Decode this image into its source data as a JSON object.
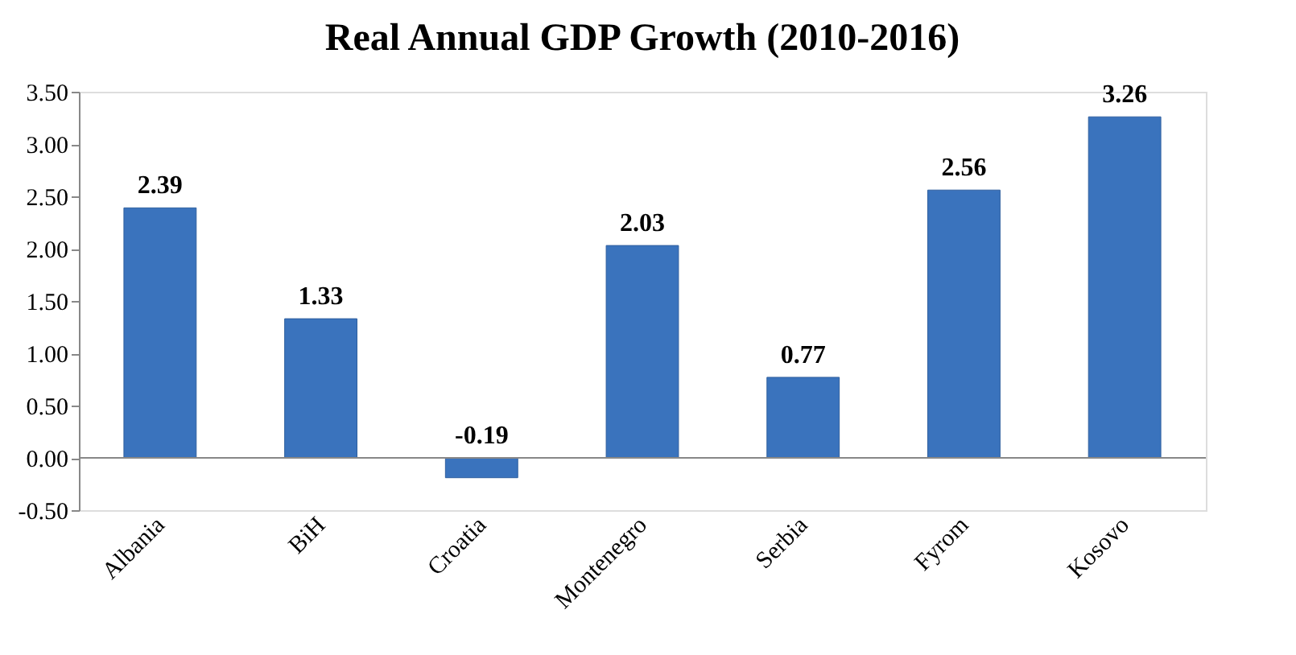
{
  "chart_data": {
    "type": "bar",
    "title": "Real Annual GDP Growth (2010-2016)",
    "categories": [
      "Albania",
      "BiH",
      "Croatia",
      "Montenegro",
      "Serbia",
      "Fyrom",
      "Kosovo"
    ],
    "values": [
      2.39,
      1.33,
      -0.19,
      2.03,
      0.77,
      2.56,
      3.26
    ],
    "color": "#3a73bd",
    "ylim": [
      -0.5,
      3.5
    ],
    "yticks": [
      {
        "value": -0.5,
        "label": "-0.50"
      },
      {
        "value": 0,
        "label": "0.00"
      },
      {
        "value": 0.5,
        "label": "0.50"
      },
      {
        "value": 1,
        "label": "1.00"
      },
      {
        "value": 1.5,
        "label": "1.50"
      },
      {
        "value": 2,
        "label": "2.00"
      },
      {
        "value": 2.5,
        "label": "2.50"
      },
      {
        "value": 3,
        "label": "3.00"
      },
      {
        "value": 3.5,
        "label": "3.50"
      }
    ],
    "data_labels": true
  }
}
